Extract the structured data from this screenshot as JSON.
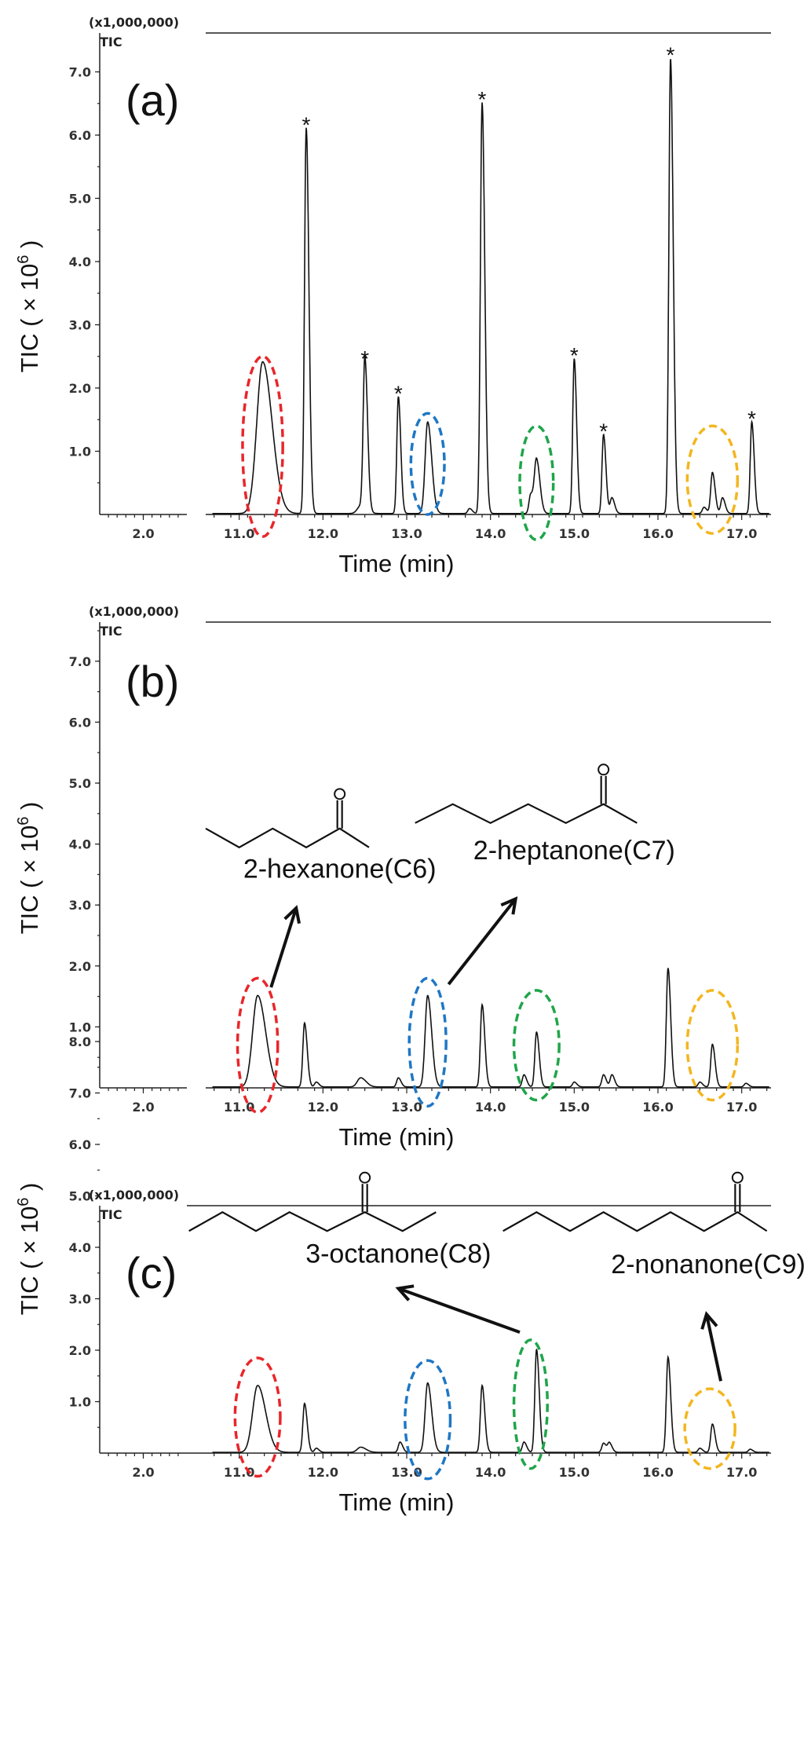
{
  "chart_data": [
    {
      "type": "line",
      "panel_label": "(a)",
      "scale_label": "(x1,000,000)",
      "trace_label": "TIC",
      "ylabel": "TIC ( × 10",
      "ylabel_sup": "6",
      "ylabel_close": ")",
      "xlabel": "Time (min)",
      "y_ticks": [
        "1.0",
        "2.0",
        "3.0",
        "4.0",
        "5.0",
        "6.0",
        "7.0"
      ],
      "ylim": [
        0,
        7.3
      ],
      "x_ticks_left": [
        "2.0"
      ],
      "x_ticks_right": [
        "11.0",
        "12.0",
        "13.0",
        "14.0",
        "15.0",
        "16.0",
        "17.0"
      ],
      "xlim_left": [
        1.5,
        2.5
      ],
      "xlim_right": [
        10.6,
        17.35
      ],
      "peaks": [
        {
          "t": 11.28,
          "h": 2.4,
          "w": 0.07
        },
        {
          "t": 11.8,
          "h": 6.1,
          "w": 0.02
        },
        {
          "t": 12.45,
          "h": 0.12,
          "w": 0.04
        },
        {
          "t": 12.5,
          "h": 2.4,
          "w": 0.02
        },
        {
          "t": 12.9,
          "h": 1.85,
          "w": 0.018
        },
        {
          "t": 13.25,
          "h": 1.45,
          "w": 0.03
        },
        {
          "t": 13.75,
          "h": 0.08,
          "w": 0.02
        },
        {
          "t": 13.9,
          "h": 6.5,
          "w": 0.02
        },
        {
          "t": 14.48,
          "h": 0.3,
          "w": 0.02
        },
        {
          "t": 14.55,
          "h": 0.85,
          "w": 0.025
        },
        {
          "t": 15.0,
          "h": 2.45,
          "w": 0.018
        },
        {
          "t": 15.35,
          "h": 1.25,
          "w": 0.018
        },
        {
          "t": 15.45,
          "h": 0.25,
          "w": 0.02
        },
        {
          "t": 16.15,
          "h": 7.2,
          "w": 0.02
        },
        {
          "t": 16.55,
          "h": 0.1,
          "w": 0.02
        },
        {
          "t": 16.65,
          "h": 0.65,
          "w": 0.02
        },
        {
          "t": 16.77,
          "h": 0.25,
          "w": 0.02
        },
        {
          "t": 17.12,
          "h": 1.45,
          "w": 0.018
        }
      ],
      "star_markers": [
        {
          "t": 11.8,
          "y": 6.22
        },
        {
          "t": 12.5,
          "y": 2.52
        },
        {
          "t": 12.9,
          "y": 1.97
        },
        {
          "t": 13.9,
          "y": 6.62
        },
        {
          "t": 15.0,
          "y": 2.57
        },
        {
          "t": 15.35,
          "y": 1.37
        },
        {
          "t": 16.15,
          "y": 7.32
        },
        {
          "t": 17.12,
          "y": 1.57
        }
      ],
      "highlight_regions": [
        {
          "color": "#e8262a",
          "t": 11.28,
          "half_width": 0.24,
          "y_low": -0.35,
          "y_high": 2.5
        },
        {
          "color": "#1f77c4",
          "t": 13.25,
          "half_width": 0.2,
          "y_low": 0.0,
          "y_high": 1.6
        },
        {
          "color": "#1fa54a",
          "t": 14.55,
          "half_width": 0.2,
          "y_low": -0.4,
          "y_high": 1.4
        },
        {
          "color": "#f3b61f",
          "t": 16.65,
          "half_width": 0.3,
          "y_low": -0.3,
          "y_high": 1.4
        }
      ],
      "compounds": []
    },
    {
      "type": "line",
      "panel_label": "(b)",
      "scale_label": "(x1,000,000)",
      "trace_label": "TIC",
      "ylabel": "TIC ( × 10",
      "ylabel_sup": "6",
      "ylabel_close": ")",
      "xlabel": "Time (min)",
      "y_ticks": [
        "1.0",
        "2.0",
        "3.0",
        "4.0",
        "5.0",
        "6.0",
        "7.0"
      ],
      "ylim": [
        0,
        7.9
      ],
      "x_ticks_left": [
        "2.0"
      ],
      "x_ticks_right": [
        "11.0",
        "12.0",
        "13.0",
        "14.0",
        "15.0",
        "16.0",
        "17.0"
      ],
      "xlim_left": [
        1.5,
        2.5
      ],
      "xlim_right": [
        10.6,
        17.35
      ],
      "peaks": [
        {
          "t": 11.22,
          "h": 1.5,
          "w": 0.06
        },
        {
          "t": 11.78,
          "h": 1.05,
          "w": 0.02
        },
        {
          "t": 11.92,
          "h": 0.08,
          "w": 0.02
        },
        {
          "t": 12.45,
          "h": 0.15,
          "w": 0.04
        },
        {
          "t": 12.9,
          "h": 0.15,
          "w": 0.02
        },
        {
          "t": 13.25,
          "h": 1.5,
          "w": 0.03
        },
        {
          "t": 13.9,
          "h": 1.35,
          "w": 0.02
        },
        {
          "t": 14.4,
          "h": 0.2,
          "w": 0.02
        },
        {
          "t": 14.55,
          "h": 0.9,
          "w": 0.02
        },
        {
          "t": 15.0,
          "h": 0.08,
          "w": 0.02
        },
        {
          "t": 15.35,
          "h": 0.2,
          "w": 0.02
        },
        {
          "t": 15.45,
          "h": 0.2,
          "w": 0.02
        },
        {
          "t": 16.12,
          "h": 1.95,
          "w": 0.02
        },
        {
          "t": 16.5,
          "h": 0.08,
          "w": 0.02
        },
        {
          "t": 16.65,
          "h": 0.7,
          "w": 0.02
        },
        {
          "t": 17.05,
          "h": 0.06,
          "w": 0.02
        }
      ],
      "star_markers": [],
      "highlight_regions": [
        {
          "color": "#e8262a",
          "t": 11.22,
          "half_width": 0.24,
          "y_low": -0.4,
          "y_high": 1.8
        },
        {
          "color": "#1f77c4",
          "t": 13.25,
          "half_width": 0.22,
          "y_low": -0.3,
          "y_high": 1.8
        },
        {
          "color": "#1fa54a",
          "t": 14.55,
          "half_width": 0.27,
          "y_low": -0.2,
          "y_high": 1.6
        },
        {
          "color": "#f3b61f",
          "t": 16.65,
          "half_width": 0.3,
          "y_low": -0.2,
          "y_high": 1.6
        }
      ],
      "compounds": [
        {
          "name": "2-hexanone(C6)",
          "label_t": 12.2,
          "label_y": 3.45,
          "mol_t": [
            10.6,
            11.0,
            11.4,
            11.8,
            12.2,
            12.55
          ],
          "mol_base_y": 4.1,
          "carbonyl_index": 4,
          "arrow": {
            "from_t": 11.38,
            "from_y": 1.65,
            "to_t": 11.68,
            "to_y": 2.95
          }
        },
        {
          "name": "2-heptanone(C7)",
          "label_t": 15.0,
          "label_y": 3.75,
          "mol_t": [
            13.1,
            13.55,
            14.0,
            14.45,
            14.9,
            15.35,
            15.75
          ],
          "mol_base_y": 4.5,
          "carbonyl_index": 5,
          "arrow": {
            "from_t": 13.5,
            "from_y": 1.7,
            "to_t": 14.3,
            "to_y": 3.1
          }
        }
      ]
    },
    {
      "type": "line",
      "panel_label": "(c)",
      "scale_label": "(x1,000,000)",
      "trace_label": "TIC",
      "ylabel": "TIC ( × 10",
      "ylabel_sup": "6",
      "ylabel_close": ")",
      "xlabel": "Time (min)",
      "y_ticks": [
        "1.0",
        "2.0",
        "3.0",
        "4.0",
        "5.0",
        "6.0",
        "7.0",
        "8.0"
      ],
      "ylim": [
        0,
        8.6
      ],
      "x_ticks_left": [
        "2.0"
      ],
      "x_ticks_right": [
        "11.0",
        "12.0",
        "13.0",
        "14.0",
        "15.0",
        "16.0",
        "17.0"
      ],
      "xlim_left": [
        1.5,
        2.5
      ],
      "xlim_right": [
        10.6,
        17.35
      ],
      "peaks": [
        {
          "t": 11.22,
          "h": 1.3,
          "w": 0.06
        },
        {
          "t": 11.78,
          "h": 0.95,
          "w": 0.02
        },
        {
          "t": 11.92,
          "h": 0.08,
          "w": 0.02
        },
        {
          "t": 12.45,
          "h": 0.1,
          "w": 0.04
        },
        {
          "t": 12.92,
          "h": 0.2,
          "w": 0.02
        },
        {
          "t": 13.25,
          "h": 1.35,
          "w": 0.03
        },
        {
          "t": 13.9,
          "h": 1.3,
          "w": 0.02
        },
        {
          "t": 14.4,
          "h": 0.2,
          "w": 0.02
        },
        {
          "t": 14.55,
          "h": 2.0,
          "w": 0.02
        },
        {
          "t": 15.35,
          "h": 0.18,
          "w": 0.02
        },
        {
          "t": 15.42,
          "h": 0.18,
          "w": 0.02
        },
        {
          "t": 16.12,
          "h": 1.85,
          "w": 0.02
        },
        {
          "t": 16.5,
          "h": 0.08,
          "w": 0.02
        },
        {
          "t": 16.65,
          "h": 0.55,
          "w": 0.02
        },
        {
          "t": 17.1,
          "h": 0.06,
          "w": 0.02
        }
      ],
      "star_markers": [],
      "highlight_regions": [
        {
          "color": "#e8262a",
          "t": 11.22,
          "half_width": 0.27,
          "y_low": -0.45,
          "y_high": 1.85
        },
        {
          "color": "#1f77c4",
          "t": 13.25,
          "half_width": 0.27,
          "y_low": -0.5,
          "y_high": 1.8
        },
        {
          "color": "#1fa54a",
          "t": 14.48,
          "half_width": 0.2,
          "y_low": -0.3,
          "y_high": 2.2
        },
        {
          "color": "#f3b61f",
          "t": 16.62,
          "half_width": 0.3,
          "y_low": -0.3,
          "y_high": 1.25
        }
      ],
      "compounds": [
        {
          "name": "3-octanone(C8)",
          "label_t": 12.9,
          "label_y": 3.7,
          "mol_t": [
            10.4,
            10.8,
            11.2,
            11.6,
            12.05,
            12.5,
            12.95,
            13.35
          ],
          "mol_base_y": 4.5,
          "carbonyl_index": 5,
          "arrow": {
            "from_t": 14.35,
            "from_y": 2.35,
            "to_t": 12.9,
            "to_y": 3.2
          }
        },
        {
          "name": "2-nonanone(C9)",
          "label_t": 16.6,
          "label_y": 3.5,
          "mol_t": [
            14.15,
            14.55,
            14.95,
            15.35,
            15.75,
            16.15,
            16.55,
            16.95,
            17.3
          ],
          "mol_base_y": 4.5,
          "carbonyl_index": 7,
          "arrow": {
            "from_t": 16.75,
            "from_y": 1.4,
            "to_t": 16.58,
            "to_y": 2.7
          }
        }
      ]
    }
  ]
}
